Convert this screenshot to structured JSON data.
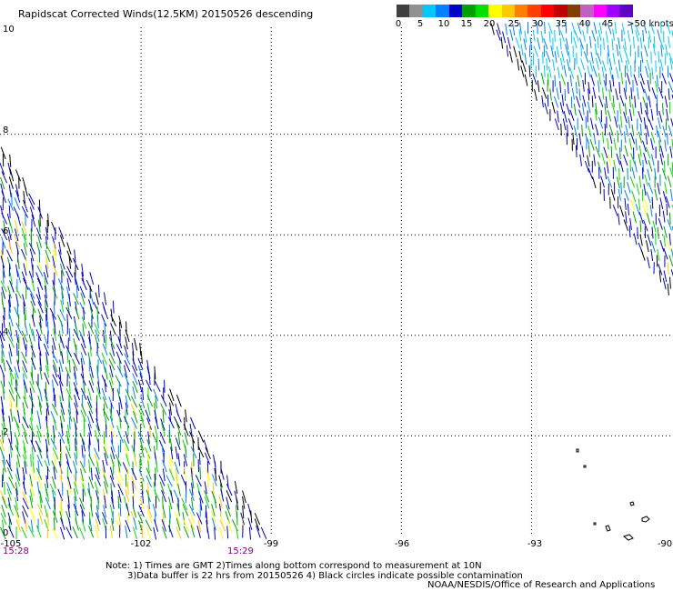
{
  "title": "Rapidscat Corrected Winds(12.5KM) 20150526 descending",
  "legend": {
    "ticks": [
      "0",
      "5",
      "10",
      "15",
      "20",
      "25",
      "30",
      "35",
      "40",
      "45",
      ">50 knots"
    ],
    "colors": [
      "#404040",
      "#909090",
      "#00c8ff",
      "#0080ff",
      "#0000c8",
      "#00a000",
      "#00e000",
      "#ffff00",
      "#ffc800",
      "#ff8000",
      "#ff4000",
      "#ff0000",
      "#c00000",
      "#804000",
      "#c060c0",
      "#ff00ff",
      "#a000ff",
      "#6000c0"
    ],
    "units": "knots"
  },
  "map": {
    "lat_labels": [
      "10",
      "8",
      "6",
      "4",
      "2",
      "0"
    ],
    "lat_values": [
      10,
      8,
      6,
      4,
      2,
      0
    ],
    "lon_labels": [
      "-105",
      "-102",
      "-99",
      "-96",
      "-93",
      "-90"
    ],
    "lon_values": [
      -105,
      -102,
      -99,
      -96,
      -93,
      -90
    ],
    "time_labels": [
      "15:28",
      "15:29"
    ],
    "coast_color": "#000000",
    "grid_color": "#000000"
  },
  "notes": [
    "Note: 1) Times are GMT 2)Times along bottom correspond to measurement at 10N",
    "3)Data buffer is 22 hrs from 20150526 4) Black circles indicate possible contamination"
  ],
  "credit": "NOAA/NESDIS/Office of Research and Applications"
}
